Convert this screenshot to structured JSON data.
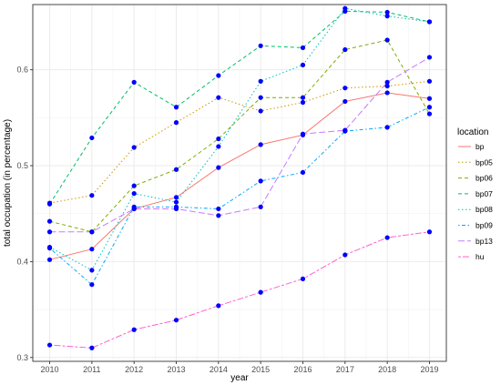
{
  "chart_data": {
    "type": "line",
    "x": [
      2010,
      2011,
      2012,
      2013,
      2014,
      2015,
      2016,
      2017,
      2018,
      2019
    ],
    "xlabel": "year",
    "ylabel": "total occupation (in percentage)",
    "xlim": [
      2009.6,
      2019.4
    ],
    "ylim": [
      0.296,
      0.668
    ],
    "yticks": [
      0.3,
      0.4,
      0.5,
      0.6
    ],
    "ytick_labels": [
      "0.3",
      "0.4",
      "0.5",
      "0.6"
    ],
    "xtick_labels": [
      "2010",
      "2011",
      "2012",
      "2013",
      "2014",
      "2015",
      "2016",
      "2017",
      "2018",
      "2019"
    ],
    "grid": true,
    "legend": {
      "title": "location",
      "position": "right"
    },
    "point_color": "#0000ff",
    "series": [
      {
        "name": "bp",
        "color": "#F8766D",
        "dash": "solid",
        "values": [
          0.402,
          0.413,
          0.455,
          0.467,
          0.498,
          0.522,
          0.532,
          0.567,
          0.576,
          0.57
        ]
      },
      {
        "name": "bp05",
        "color": "#CD9600",
        "dash": "dotted",
        "values": [
          0.461,
          0.469,
          0.519,
          0.545,
          0.571,
          0.557,
          0.566,
          0.581,
          0.583,
          0.588
        ]
      },
      {
        "name": "bp06",
        "color": "#7CAE00",
        "dash": "dashed",
        "values": [
          0.442,
          0.431,
          0.479,
          0.496,
          0.528,
          0.571,
          0.571,
          0.621,
          0.631,
          0.554
        ]
      },
      {
        "name": "bp07",
        "color": "#00BE67",
        "dash": "dashed",
        "values": [
          0.46,
          0.529,
          0.587,
          0.561,
          0.594,
          0.625,
          0.623,
          0.661,
          0.66,
          0.65
        ]
      },
      {
        "name": "bp08",
        "color": "#00BFC4",
        "dash": "dotted",
        "values": [
          0.415,
          0.391,
          0.471,
          0.462,
          0.52,
          0.588,
          0.605,
          0.664,
          0.656,
          0.65
        ]
      },
      {
        "name": "bp09",
        "color": "#00A9FF",
        "dash": "dotdash",
        "values": [
          0.414,
          0.376,
          0.457,
          0.457,
          0.455,
          0.484,
          0.493,
          0.536,
          0.54,
          0.561
        ]
      },
      {
        "name": "bp13",
        "color": "#C77CFF",
        "dash": "longdash",
        "values": [
          0.431,
          0.431,
          0.455,
          0.455,
          0.448,
          0.457,
          0.533,
          0.537,
          0.587,
          0.613
        ]
      },
      {
        "name": "hu",
        "color": "#FF61CC",
        "dash": "twodash",
        "values": [
          0.313,
          0.31,
          0.329,
          0.339,
          0.354,
          0.368,
          0.382,
          0.407,
          0.425,
          0.431
        ]
      }
    ]
  }
}
